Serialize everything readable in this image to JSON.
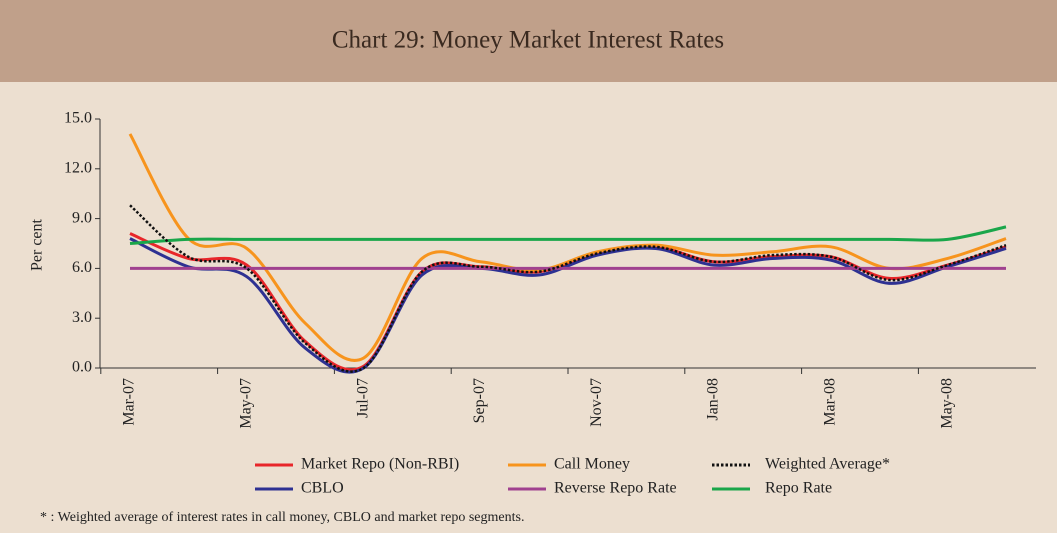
{
  "chart_data": {
    "type": "line",
    "title": "Chart 29: Money Market Interest Rates",
    "y_label": "Per cent",
    "footnote": "* : Weighted average of interest rates in call money, CBLO and market repo segments.",
    "categories": [
      "Mar-07",
      null,
      "May-07",
      null,
      "Jul-07",
      null,
      "Sep-07",
      null,
      "Nov-07",
      null,
      "Jan-08",
      null,
      "Mar-08",
      null,
      "May-08",
      null
    ],
    "ylim": [
      0,
      15
    ],
    "yticks": [
      {
        "value": 0,
        "label": "0.0"
      },
      {
        "value": 3,
        "label": "3.0"
      },
      {
        "value": 6,
        "label": "6.0"
      },
      {
        "value": 9,
        "label": "9.0"
      },
      {
        "value": 12,
        "label": "12.0"
      },
      {
        "value": 15,
        "label": "15.0"
      }
    ],
    "series": [
      {
        "name": "Market Repo (Non-RBI)",
        "color": "#e8262a",
        "values": [
          8.1,
          6.6,
          6.2,
          1.6,
          0.1,
          5.8,
          6.1,
          5.8,
          6.9,
          7.3,
          6.4,
          6.7,
          6.7,
          5.4,
          6.2,
          7.3
        ]
      },
      {
        "name": "Call Money",
        "color": "#f7941d",
        "values": [
          14.1,
          7.8,
          7.2,
          2.7,
          0.6,
          6.6,
          6.4,
          5.9,
          7.0,
          7.4,
          6.8,
          7.0,
          7.3,
          6.0,
          6.6,
          7.8
        ]
      },
      {
        "name": "Weighted Average*",
        "color": "#111111",
        "dash": true,
        "values": [
          9.8,
          6.7,
          6.0,
          1.5,
          0.0,
          5.8,
          6.1,
          5.8,
          6.9,
          7.3,
          6.4,
          6.8,
          6.7,
          5.3,
          6.2,
          7.4
        ]
      },
      {
        "name": "CBLO",
        "color": "#2e3192",
        "values": [
          7.8,
          6.1,
          5.5,
          1.2,
          0.0,
          5.6,
          6.0,
          5.6,
          6.8,
          7.2,
          6.2,
          6.6,
          6.5,
          5.1,
          6.1,
          7.2
        ]
      },
      {
        "name": "Reverse Repo Rate",
        "color": "#a0418f",
        "values": [
          6.0,
          6.0,
          6.0,
          6.0,
          6.0,
          6.0,
          6.0,
          6.0,
          6.0,
          6.0,
          6.0,
          6.0,
          6.0,
          6.0,
          6.0,
          6.0
        ]
      },
      {
        "name": "Repo Rate",
        "color": "#1aa64a",
        "values": [
          7.5,
          7.75,
          7.75,
          7.75,
          7.75,
          7.75,
          7.75,
          7.75,
          7.75,
          7.75,
          7.75,
          7.75,
          7.75,
          7.75,
          7.75,
          8.5
        ]
      }
    ]
  }
}
